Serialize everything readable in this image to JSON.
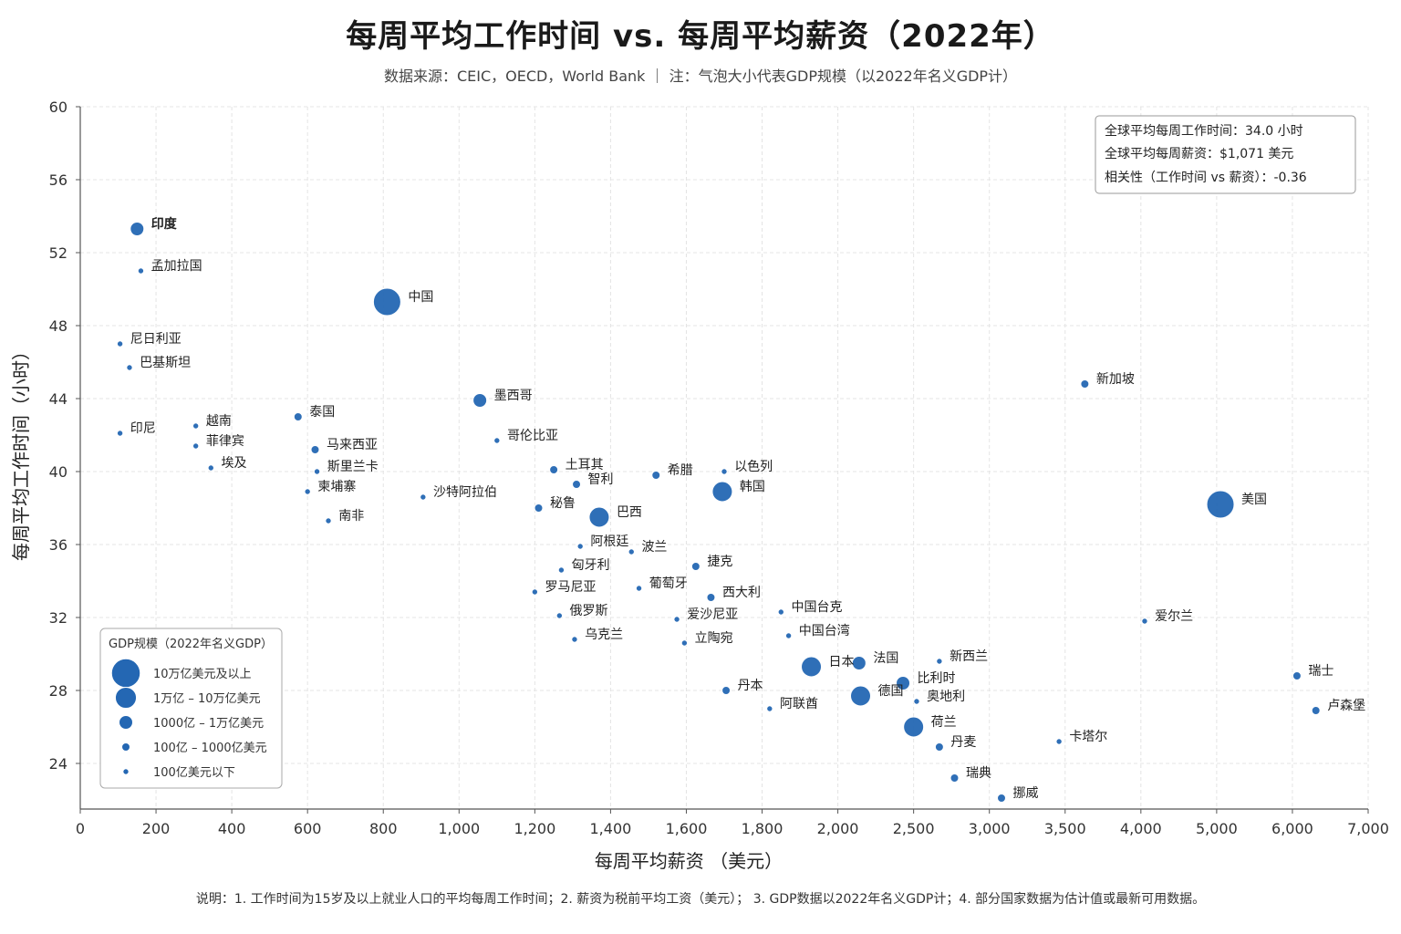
{
  "title": "每周平均工作时间 vs. 每周平均薪资（2022年）",
  "subtitle": "数据来源：CEIC，OECD，World Bank   ｜   注：气泡大小代表GDP规模（以2022年名义GDP计）",
  "footnote": "说明：1. 工作时间为15岁及以上就业人口的平均每周工作时间；2. 薪资为税前平均工资（美元）；  3. GDP数据以2022年名义GDP计；4. 部分国家数据为估计值或最新可用数据。",
  "stats_box": {
    "lines": [
      "全球平均每周工作时间：34.0 小时",
      "全球平均每周薪资：$1,071 美元",
      "相关性（工作时间 vs 薪资）：-0.36"
    ]
  },
  "legend": {
    "title": "GDP规模（2022年名义GDP）",
    "items": [
      {
        "label": "10万亿美元及以上",
        "size_class": 5
      },
      {
        "label": "1万亿 – 10万亿美元",
        "size_class": 4
      },
      {
        "label": "1000亿 – 1万亿美元",
        "size_class": 3
      },
      {
        "label": "100亿 – 1000亿美元",
        "size_class": 2
      },
      {
        "label": "100亿美元以下",
        "size_class": 1
      }
    ]
  },
  "colors": {
    "bubble": "#2467b3",
    "bubble_stroke": "#ffffff",
    "grid": "#e4e4e4",
    "axis": "#555555"
  },
  "chart_data": {
    "type": "scatter",
    "xlabel": "每周平均薪资 （美元）",
    "ylabel": "每周平均工作时间（小时）",
    "x_ticks": [
      "0",
      "200",
      "400",
      "600",
      "800",
      "1,000",
      "1,200",
      "1,400",
      "1,600",
      "1,800",
      "2,000",
      "2,500",
      "3,000",
      "3,500",
      "4,000",
      "5,000",
      "6,000",
      "7,000"
    ],
    "x_tick_values": [
      0,
      200,
      400,
      600,
      800,
      1000,
      1200,
      1400,
      1600,
      1800,
      2000,
      2500,
      3000,
      3500,
      4000,
      5000,
      6000,
      7000
    ],
    "x_scale": "piecewise",
    "y_ticks": [
      "24",
      "28",
      "32",
      "36",
      "40",
      "44",
      "48",
      "52",
      "56",
      "60"
    ],
    "y_tick_values": [
      24,
      28,
      32,
      36,
      40,
      44,
      48,
      52,
      56,
      60
    ],
    "ylim": [
      21.5,
      60
    ],
    "grid": true,
    "legend_position": "bottom-left",
    "points": [
      {
        "name": "印度",
        "x": 150,
        "y": 53.3,
        "size_class": 3,
        "bold": true
      },
      {
        "name": "孟加拉国",
        "x": 160,
        "y": 51.0,
        "size_class": 1
      },
      {
        "name": "中国",
        "x": 810,
        "y": 49.3,
        "size_class": 5
      },
      {
        "name": "尼日利亚",
        "x": 105,
        "y": 47.0,
        "size_class": 1
      },
      {
        "name": "巴基斯坦",
        "x": 130,
        "y": 45.7,
        "size_class": 1
      },
      {
        "name": "墨西哥",
        "x": 1055,
        "y": 43.9,
        "size_class": 3
      },
      {
        "name": "印尼",
        "x": 105,
        "y": 42.1,
        "size_class": 1
      },
      {
        "name": "越南",
        "x": 305,
        "y": 42.5,
        "size_class": 1
      },
      {
        "name": "泰国",
        "x": 575,
        "y": 43.0,
        "size_class": 2
      },
      {
        "name": "哥伦比亚",
        "x": 1100,
        "y": 41.7,
        "size_class": 1
      },
      {
        "name": "菲律宾",
        "x": 305,
        "y": 41.4,
        "size_class": 1
      },
      {
        "name": "马来西亚",
        "x": 620,
        "y": 41.2,
        "size_class": 2
      },
      {
        "name": "埃及",
        "x": 345,
        "y": 40.2,
        "size_class": 1
      },
      {
        "name": "斯里兰卡",
        "x": 625,
        "y": 40.0,
        "size_class": 1
      },
      {
        "name": "土耳其",
        "x": 1250,
        "y": 40.1,
        "size_class": 2
      },
      {
        "name": "希腊",
        "x": 1520,
        "y": 39.8,
        "size_class": 2
      },
      {
        "name": "以色列",
        "x": 1700,
        "y": 40.0,
        "size_class": 1
      },
      {
        "name": "柬埔寨",
        "x": 600,
        "y": 38.9,
        "size_class": 1
      },
      {
        "name": "智利",
        "x": 1310,
        "y": 39.3,
        "size_class": 2
      },
      {
        "name": "沙特阿拉伯",
        "x": 905,
        "y": 38.6,
        "size_class": 1
      },
      {
        "name": "韩国",
        "x": 1695,
        "y": 38.9,
        "size_class": 4
      },
      {
        "name": "秘鲁",
        "x": 1210,
        "y": 38.0,
        "size_class": 2
      },
      {
        "name": "巴西",
        "x": 1370,
        "y": 37.5,
        "size_class": 4
      },
      {
        "name": "南非",
        "x": 655,
        "y": 37.3,
        "size_class": 1
      },
      {
        "name": "美国",
        "x": 5050,
        "y": 38.2,
        "size_class": 5
      },
      {
        "name": "新加坡",
        "x": 3630,
        "y": 44.8,
        "size_class": 2
      },
      {
        "name": "阿根廷",
        "x": 1320,
        "y": 35.9,
        "size_class": 1
      },
      {
        "name": "波兰",
        "x": 1455,
        "y": 35.6,
        "size_class": 1
      },
      {
        "name": "匈牙利",
        "x": 1270,
        "y": 34.6,
        "size_class": 1
      },
      {
        "name": "捷克",
        "x": 1625,
        "y": 34.8,
        "size_class": 2
      },
      {
        "name": "罗马尼亚",
        "x": 1200,
        "y": 33.4,
        "size_class": 1
      },
      {
        "name": "葡萄牙",
        "x": 1475,
        "y": 33.6,
        "size_class": 1
      },
      {
        "name": "西大利",
        "x": 1665,
        "y": 33.1,
        "size_class": 2
      },
      {
        "name": "中国台克",
        "x": 1850,
        "y": 32.3,
        "size_class": 1
      },
      {
        "name": "俄罗斯",
        "x": 1265,
        "y": 32.1,
        "size_class": 1
      },
      {
        "name": "爱沙尼亚",
        "x": 1575,
        "y": 31.9,
        "size_class": 1
      },
      {
        "name": "爱尔兰",
        "x": 4050,
        "y": 31.8,
        "size_class": 1
      },
      {
        "name": "乌克兰",
        "x": 1305,
        "y": 30.8,
        "size_class": 1
      },
      {
        "name": "中国台湾",
        "x": 1870,
        "y": 31.0,
        "size_class": 1
      },
      {
        "name": "立陶宛",
        "x": 1595,
        "y": 30.6,
        "size_class": 1
      },
      {
        "name": "日本",
        "x": 1930,
        "y": 29.3,
        "size_class": 4
      },
      {
        "name": "法国",
        "x": 2140,
        "y": 29.5,
        "size_class": 3
      },
      {
        "name": "新西兰",
        "x": 2670,
        "y": 29.6,
        "size_class": 1
      },
      {
        "name": "瑞士",
        "x": 6060,
        "y": 28.8,
        "size_class": 2
      },
      {
        "name": "比利时",
        "x": 2430,
        "y": 28.4,
        "size_class": 3
      },
      {
        "name": "丹本",
        "x": 1705,
        "y": 28.0,
        "size_class": 2
      },
      {
        "name": "德国",
        "x": 2150,
        "y": 27.7,
        "size_class": 4
      },
      {
        "name": "奥地利",
        "x": 2520,
        "y": 27.4,
        "size_class": 1
      },
      {
        "name": "阿联酋",
        "x": 1820,
        "y": 27.0,
        "size_class": 1
      },
      {
        "name": "卢森堡",
        "x": 6310,
        "y": 26.9,
        "size_class": 2
      },
      {
        "name": "荷兰",
        "x": 2500,
        "y": 26.0,
        "size_class": 4
      },
      {
        "name": "卡塔尔",
        "x": 3460,
        "y": 25.2,
        "size_class": 1
      },
      {
        "name": "丹麦",
        "x": 2670,
        "y": 24.9,
        "size_class": 2
      },
      {
        "name": "瑞典",
        "x": 2770,
        "y": 23.2,
        "size_class": 2
      },
      {
        "name": "挪威",
        "x": 3080,
        "y": 22.1,
        "size_class": 2
      }
    ]
  }
}
